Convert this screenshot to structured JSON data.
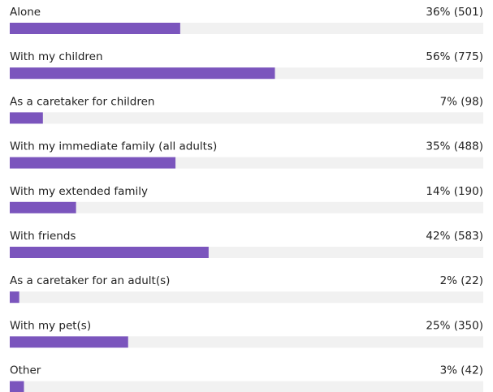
{
  "chart_data": {
    "type": "hbar",
    "categories": [
      "Alone",
      "With my children",
      "As a caretaker for children",
      "With my immediate family (all adults)",
      "With my extended family",
      "With friends",
      "As a caretaker for an adult(s)",
      "With my pet(s)",
      "Other"
    ],
    "values": [
      36,
      56,
      7,
      35,
      14,
      42,
      2,
      25,
      3
    ],
    "value_labels": [
      "36% (501)",
      "56% (775)",
      "7% (98)",
      "35% (488)",
      "14% (190)",
      "42% (583)",
      "2% (22)",
      "25% (350)",
      "3% (42)"
    ],
    "xlim": [
      0,
      100
    ],
    "color": "#7b55bd"
  }
}
